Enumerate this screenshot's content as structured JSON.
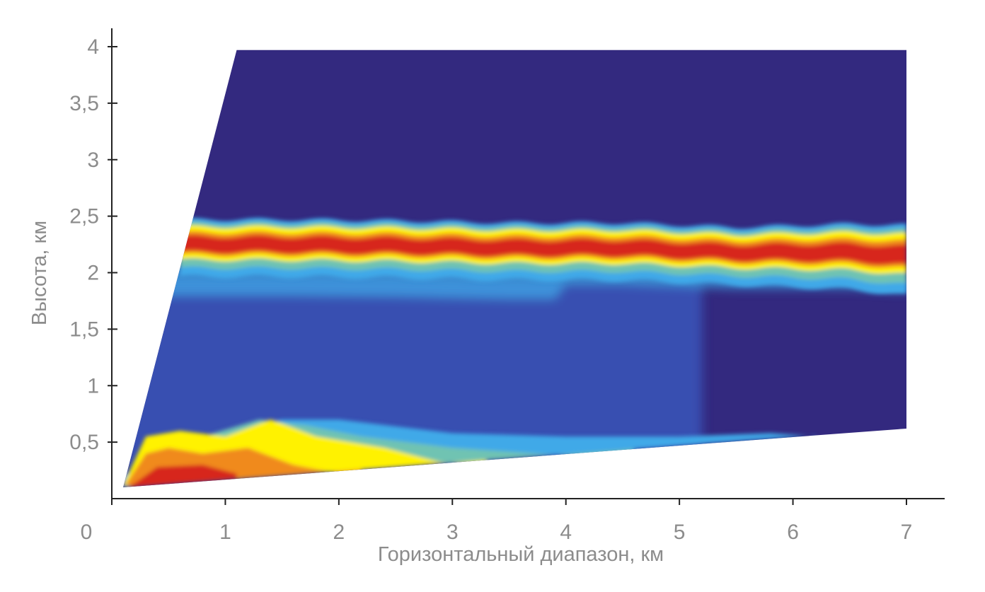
{
  "chart_data": {
    "type": "heatmap",
    "title": "",
    "xlabel": "Горизонтальный диапазон, км",
    "ylabel": "Высота, км",
    "xlim": [
      0,
      7
    ],
    "ylim": [
      0,
      4
    ],
    "x_ticks": [
      {
        "value": 0,
        "label": "0"
      },
      {
        "value": 1,
        "label": "1"
      },
      {
        "value": 2,
        "label": "2"
      },
      {
        "value": 3,
        "label": "3"
      },
      {
        "value": 4,
        "label": "4"
      },
      {
        "value": 5,
        "label": "5"
      },
      {
        "value": 6,
        "label": "6"
      },
      {
        "value": 7,
        "label": "7"
      }
    ],
    "y_ticks": [
      {
        "value": 0.5,
        "label": "0,5"
      },
      {
        "value": 1,
        "label": "1"
      },
      {
        "value": 1.5,
        "label": "1,5"
      },
      {
        "value": 2,
        "label": "2"
      },
      {
        "value": 2.5,
        "label": "2,5"
      },
      {
        "value": 3,
        "label": "3"
      },
      {
        "value": 3.5,
        "label": "3,5"
      },
      {
        "value": 4,
        "label": "4"
      }
    ],
    "scan_region": {
      "lower_edge": [
        [
          0.1,
          0.1
        ],
        [
          7.0,
          0.62
        ]
      ],
      "upper_edge": [
        [
          0.1,
          0.1
        ],
        [
          1.1,
          3.97
        ]
      ],
      "top": 3.97,
      "right": 7.0
    },
    "layer_band": {
      "description_points_x": [
        0.7,
        1.5,
        2.5,
        3.5,
        4.5,
        5.5,
        6.5,
        7.0
      ],
      "center_km": [
        2.25,
        2.25,
        2.24,
        2.22,
        2.22,
        2.18,
        2.18,
        2.15
      ],
      "core_halfwidth_km": [
        0.07,
        0.07,
        0.07,
        0.08,
        0.08,
        0.07,
        0.06,
        0.05
      ],
      "outer_halfwidth_km": [
        0.22,
        0.22,
        0.22,
        0.22,
        0.22,
        0.22,
        0.25,
        0.27
      ]
    },
    "colors": {
      "background": "#33297f",
      "low": "#3a51b4",
      "mid_low": "#3fa9e8",
      "mid": "#6fc3b2",
      "mid_high": "#fff200",
      "high": "#f08a1c",
      "max": "#d7261d"
    },
    "grid": false
  }
}
